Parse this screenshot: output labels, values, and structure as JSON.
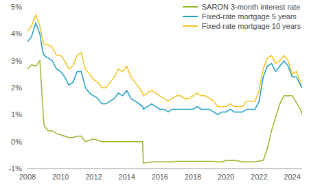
{
  "chart_data": {
    "type": "line",
    "x": [
      2008,
      2008.25,
      2008.5,
      2008.75,
      2008.9,
      2009,
      2009.25,
      2009.5,
      2009.75,
      2010,
      2010.25,
      2010.5,
      2010.75,
      2011,
      2011.25,
      2011.5,
      2011.75,
      2012,
      2012.25,
      2012.5,
      2012.75,
      2013,
      2013.25,
      2013.5,
      2013.75,
      2014,
      2014.25,
      2014.5,
      2014.75,
      2014.96,
      2015,
      2015.25,
      2015.5,
      2015.75,
      2016,
      2016.25,
      2016.5,
      2016.75,
      2017,
      2017.25,
      2017.5,
      2017.75,
      2018,
      2018.25,
      2018.5,
      2018.75,
      2019,
      2019.25,
      2019.5,
      2019.75,
      2020,
      2020.25,
      2020.5,
      2020.75,
      2021,
      2021.25,
      2021.5,
      2021.75,
      2022,
      2022.25,
      2022.5,
      2022.75,
      2023,
      2023.25,
      2023.5,
      2023.75,
      2024,
      2024.25,
      2024.5,
      2024.6
    ],
    "series": [
      {
        "name": "SARON 3-month interest rate",
        "color": "#95b92a",
        "values": [
          2.7,
          2.85,
          2.8,
          3.0,
          1.5,
          0.6,
          0.4,
          0.4,
          0.3,
          0.25,
          0.2,
          0.15,
          0.15,
          0.2,
          0.2,
          0.0,
          0.05,
          0.1,
          0.05,
          0.0,
          0.0,
          0.0,
          0.0,
          0.0,
          0.0,
          0.0,
          0.0,
          0.0,
          0.0,
          0.0,
          -0.8,
          -0.78,
          -0.75,
          -0.75,
          -0.75,
          -0.75,
          -0.75,
          -0.75,
          -0.73,
          -0.73,
          -0.73,
          -0.73,
          -0.73,
          -0.73,
          -0.73,
          -0.73,
          -0.73,
          -0.73,
          -0.75,
          -0.75,
          -0.7,
          -0.7,
          -0.7,
          -0.72,
          -0.75,
          -0.75,
          -0.75,
          -0.75,
          -0.72,
          -0.7,
          -0.25,
          0.4,
          0.9,
          1.4,
          1.7,
          1.7,
          1.7,
          1.45,
          1.2,
          1.0
        ]
      },
      {
        "name": "Fixed-rate mortgage 5 years",
        "color": "#1b9cc4",
        "values": [
          3.7,
          3.9,
          4.4,
          4.0,
          3.4,
          3.2,
          3.1,
          3.0,
          2.7,
          2.6,
          2.4,
          2.1,
          2.2,
          2.6,
          2.6,
          2.0,
          1.8,
          1.7,
          1.6,
          1.4,
          1.4,
          1.5,
          1.6,
          1.8,
          1.7,
          1.9,
          1.6,
          1.5,
          1.4,
          1.3,
          1.2,
          1.3,
          1.4,
          1.3,
          1.2,
          1.2,
          1.1,
          1.2,
          1.2,
          1.2,
          1.2,
          1.2,
          1.2,
          1.3,
          1.2,
          1.2,
          1.2,
          1.1,
          1.0,
          1.1,
          1.1,
          1.2,
          1.1,
          1.1,
          1.1,
          1.2,
          1.2,
          1.2,
          1.5,
          2.4,
          2.8,
          2.9,
          2.6,
          2.8,
          3.0,
          2.8,
          2.4,
          2.4,
          2.1,
          2.0
        ]
      },
      {
        "name": "Fixed-rate mortgage 10 years",
        "color": "#f3c31c",
        "values": [
          4.1,
          4.3,
          4.7,
          4.3,
          3.8,
          3.6,
          3.6,
          3.5,
          3.2,
          3.2,
          3.0,
          2.7,
          2.8,
          3.2,
          3.3,
          2.7,
          2.5,
          2.3,
          2.2,
          2.0,
          2.0,
          2.2,
          2.4,
          2.7,
          2.6,
          2.8,
          2.4,
          2.2,
          2.0,
          1.8,
          1.7,
          1.8,
          1.9,
          1.8,
          1.7,
          1.6,
          1.5,
          1.6,
          1.7,
          1.7,
          1.6,
          1.6,
          1.7,
          1.8,
          1.7,
          1.7,
          1.6,
          1.5,
          1.3,
          1.3,
          1.3,
          1.4,
          1.3,
          1.3,
          1.3,
          1.5,
          1.5,
          1.5,
          1.9,
          2.7,
          3.1,
          3.2,
          2.9,
          3.0,
          3.2,
          3.0,
          2.5,
          2.6,
          2.2,
          2.1
        ]
      }
    ],
    "xlim": [
      2008,
      2024.6
    ],
    "xticks": [
      2008,
      2010,
      2012,
      2014,
      2016,
      2018,
      2020,
      2022,
      2024
    ],
    "ylim": [
      -1,
      5
    ],
    "yticks": [
      {
        "value": -1,
        "label": "-1%"
      },
      {
        "value": 0,
        "label": "0%"
      },
      {
        "value": 1,
        "label": "1%"
      },
      {
        "value": 2,
        "label": "2%"
      },
      {
        "value": 3,
        "label": "3%"
      },
      {
        "value": 4,
        "label": "4%"
      },
      {
        "value": 5,
        "label": "5%"
      }
    ],
    "grid": false,
    "legend": "upper right"
  }
}
